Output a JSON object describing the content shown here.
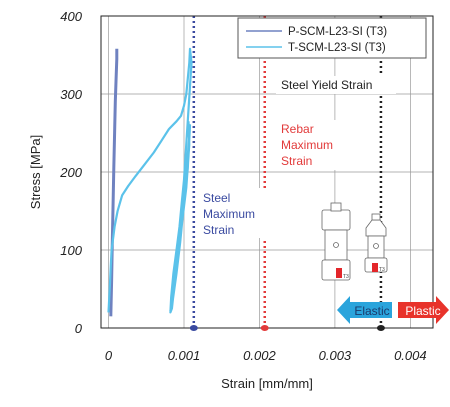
{
  "chart_data": {
    "type": "line",
    "xlabel": "Strain [mm/mm]",
    "ylabel": "Stress [MPa]",
    "xlim": [
      -0.0001,
      0.0043
    ],
    "ylim": [
      0,
      400
    ],
    "x_ticks": [
      0,
      0.001,
      0.002,
      0.003,
      0.004
    ],
    "x_tick_labels": [
      "0",
      "0.001",
      "0.002",
      "0.003",
      "0.004"
    ],
    "y_ticks": [
      0,
      100,
      200,
      300,
      400
    ],
    "y_tick_labels": [
      "0",
      "100",
      "200",
      "300",
      "400"
    ],
    "grid": true,
    "legend_position": "top-right",
    "series": [
      {
        "name": "P-SCM-L23-SI (T3)",
        "color": "#6f82c0",
        "x": [
          3e-05,
          4e-05,
          5e-05,
          6e-05,
          7e-05,
          8e-05,
          9e-05,
          0.0001,
          0.00011,
          0.00011
        ],
        "y": [
          15,
          60,
          110,
          160,
          205,
          250,
          290,
          320,
          345,
          358
        ]
      },
      {
        "name": "T-SCM-L23-SI (T3)",
        "color": "#5bc2ea",
        "x": [
          0.0,
          1e-05,
          2e-05,
          3e-05,
          4e-05,
          6e-05,
          8e-05,
          0.00012,
          0.00018,
          0.00026,
          0.00036,
          0.00048,
          0.0006,
          0.0007,
          0.0008,
          0.0009,
          0.00096,
          0.001,
          0.00103,
          0.00105,
          0.00107,
          0.00108,
          0.0011,
          0.00108,
          0.00106,
          0.00104,
          0.00102,
          0.001,
          0.00097,
          0.00094,
          0.0009,
          0.00086,
          0.00083,
          0.00082,
          0.00084,
          0.00088,
          0.00093,
          0.00098,
          0.00103,
          0.00106,
          0.00108,
          0.00106,
          0.00103,
          0.00099,
          0.00095,
          0.0009,
          0.00085,
          0.00082,
          0.00085,
          0.0009,
          0.00096,
          0.00101,
          0.00105,
          0.00107,
          0.00104,
          0.001,
          0.00095,
          0.0009,
          0.00086,
          0.00089,
          0.00094,
          0.00099,
          0.00104,
          0.00107,
          0.00106
        ],
        "y": [
          20,
          40,
          60,
          80,
          100,
          115,
          130,
          150,
          170,
          182,
          195,
          210,
          225,
          240,
          255,
          265,
          272,
          285,
          300,
          320,
          340,
          358,
          340,
          310,
          280,
          250,
          220,
          190,
          160,
          130,
          100,
          70,
          40,
          20,
          25,
          60,
          100,
          140,
          180,
          220,
          260,
          230,
          190,
          150,
          110,
          70,
          35,
          22,
          45,
          85,
          125,
          165,
          205,
          245,
          210,
          170,
          130,
          90,
          55,
          75,
          115,
          155,
          195,
          235,
          265
        ]
      }
    ],
    "annotations": [
      {
        "text_lines": [
          "Steel",
          "Maximum",
          "Strain"
        ],
        "color": "#3a4aa0",
        "x": 0.00113
      },
      {
        "text_lines": [
          "Rebar",
          "Maximum",
          "Strain"
        ],
        "color": "#e23a3a",
        "x": 0.00207
      },
      {
        "text_lines": [
          "Steel Yield Strain"
        ],
        "color": "#222222",
        "x": 0.00361
      }
    ],
    "vertical_lines": [
      {
        "x": 0.00113,
        "color": "#3a4aa0",
        "style": "dotted"
      },
      {
        "x": 0.00207,
        "color": "#e23a3a",
        "style": "dotted"
      },
      {
        "x": 0.00361,
        "color": "#222222",
        "style": "dotted"
      }
    ],
    "region_arrows": [
      {
        "label": "Elastic",
        "direction": "left",
        "color": "#2aa4dc"
      },
      {
        "label": "Plastic",
        "direction": "right",
        "color": "#e8332b"
      }
    ]
  }
}
